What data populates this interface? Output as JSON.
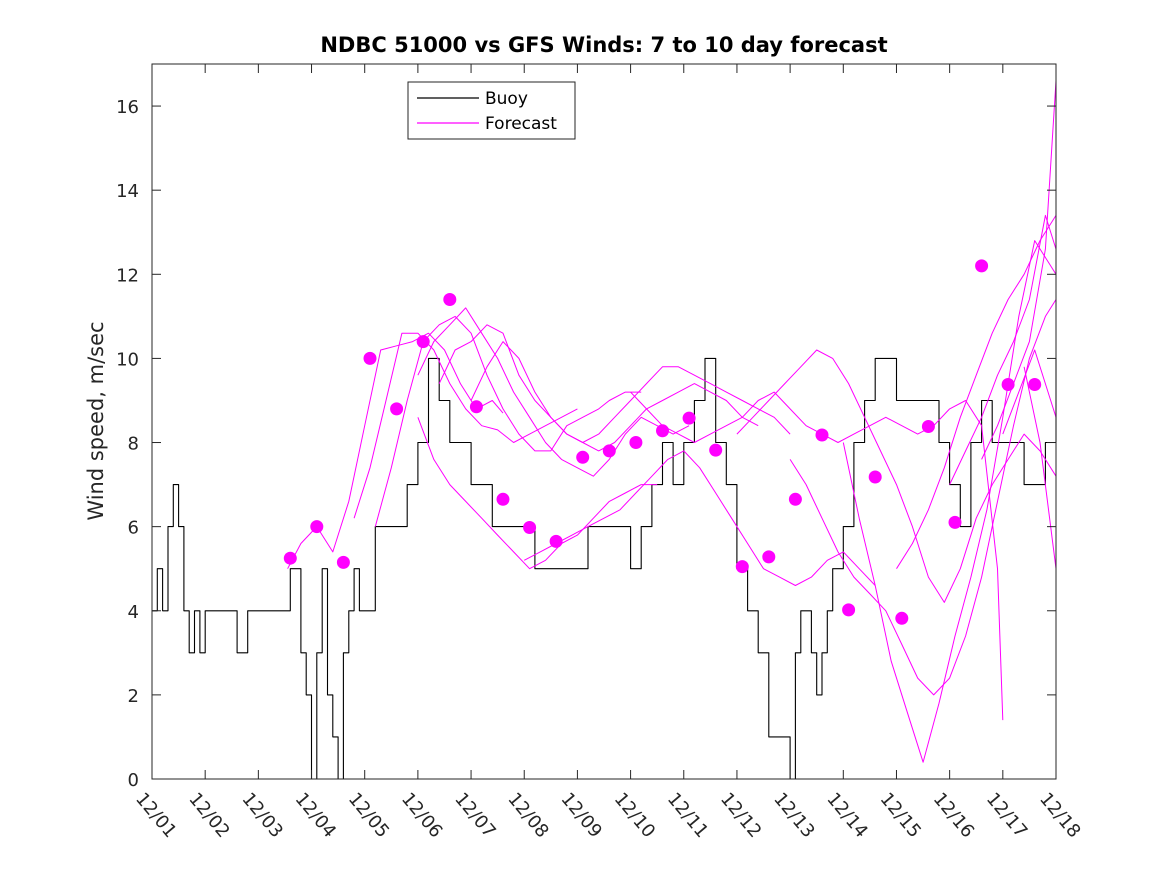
{
  "chart_data": {
    "type": "line",
    "title": "NDBC 51000 vs GFS Winds: 7 to 10 day forecast",
    "xlabel": "",
    "ylabel": "Wind speed, m/sec",
    "xlim": [
      0,
      17
    ],
    "ylim": [
      0,
      17
    ],
    "x_tick_labels": [
      "12/01",
      "12/02",
      "12/03",
      "12/04",
      "12/05",
      "12/06",
      "12/07",
      "12/08",
      "12/09",
      "12/10",
      "12/11",
      "12/12",
      "12/13",
      "12/14",
      "12/15",
      "12/16",
      "12/17",
      "12/18"
    ],
    "y_ticks": [
      0,
      2,
      4,
      6,
      8,
      10,
      12,
      14,
      16
    ],
    "legend": {
      "position": "top-center",
      "entries": [
        "Buoy",
        "Forecast"
      ]
    },
    "colors": {
      "buoy": "#000000",
      "forecast": "#ff00ff",
      "axes": "#262626"
    },
    "series": [
      {
        "name": "Buoy",
        "x": [
          0,
          0.1,
          0.2,
          0.3,
          0.4,
          0.5,
          0.6,
          0.7,
          0.8,
          0.9,
          1.0,
          1.2,
          1.4,
          1.6,
          1.8,
          2.0,
          2.2,
          2.4,
          2.6,
          2.8,
          2.9,
          3.0,
          3.1,
          3.2,
          3.3,
          3.4,
          3.5,
          3.6,
          3.7,
          3.8,
          3.9,
          4.0,
          4.2,
          4.4,
          4.6,
          4.8,
          5.0,
          5.2,
          5.4,
          5.6,
          5.8,
          6.0,
          6.2,
          6.4,
          6.6,
          6.8,
          7.0,
          7.2,
          7.4,
          7.6,
          7.8,
          8.0,
          8.2,
          8.4,
          8.6,
          8.8,
          9.0,
          9.2,
          9.4,
          9.6,
          9.8,
          10.0,
          10.2,
          10.4,
          10.6,
          10.8,
          11.0,
          11.2,
          11.4,
          11.6,
          11.8,
          12.0,
          12.1,
          12.2,
          12.3,
          12.4,
          12.5,
          12.6,
          12.7,
          12.8,
          13.0,
          13.2,
          13.4,
          13.6,
          13.8,
          14.0,
          14.2,
          14.4,
          14.6,
          14.8,
          15.0,
          15.2,
          15.4,
          15.6,
          15.8,
          16.0,
          16.2,
          16.4,
          16.6,
          16.8,
          17.0
        ],
        "y": [
          4,
          5,
          4,
          6,
          7,
          6,
          4,
          3,
          4,
          3,
          4,
          4,
          4,
          3,
          4,
          4,
          4,
          4,
          5,
          3,
          2,
          0,
          3,
          5,
          2,
          1,
          0,
          3,
          4,
          5,
          4,
          4,
          6,
          6,
          6,
          7,
          8,
          10,
          9,
          8,
          8,
          7,
          7,
          6,
          6,
          6,
          6,
          5,
          5,
          5,
          5,
          5,
          6,
          6,
          6,
          6,
          5,
          6,
          7,
          8,
          7,
          8,
          9,
          10,
          8,
          7,
          5,
          4,
          3,
          1,
          1,
          0,
          3,
          4,
          4,
          3,
          2,
          3,
          4,
          5,
          6,
          8,
          9,
          10,
          10,
          9,
          9,
          9,
          9,
          8,
          7,
          6,
          8,
          9,
          8,
          8,
          8,
          7,
          7,
          8,
          10
        ]
      },
      {
        "name": "Forecast 1",
        "x": [
          2.55,
          2.8,
          3.1,
          3.4,
          3.7,
          4.0,
          4.3,
          4.6,
          4.9,
          5.2,
          5.5,
          5.8,
          6.1,
          6.4,
          6.6
        ],
        "y": [
          5.0,
          5.6,
          6.0,
          5.4,
          6.6,
          8.4,
          10.2,
          10.3,
          10.4,
          10.6,
          10.2,
          9.4,
          8.8,
          9.0,
          8.7
        ]
      },
      {
        "name": "Forecast 2",
        "x": [
          3.8,
          4.1,
          4.4,
          4.7,
          5.0,
          5.3,
          5.6,
          5.9,
          6.2,
          6.5,
          6.8,
          7.1,
          7.4,
          7.7,
          8.0
        ],
        "y": [
          6.2,
          7.4,
          9.0,
          10.6,
          10.6,
          10.2,
          9.4,
          8.8,
          8.4,
          8.3,
          8.0,
          8.2,
          8.4,
          8.6,
          8.8
        ]
      },
      {
        "name": "Forecast 3",
        "x": [
          4.2,
          4.5,
          4.8,
          5.1,
          5.4,
          5.7,
          6.0,
          6.3,
          6.6,
          6.9,
          7.2,
          7.5,
          7.8,
          8.1,
          8.4,
          8.6,
          8.9,
          9.2
        ],
        "y": [
          6.0,
          7.4,
          9.0,
          10.4,
          10.8,
          11.0,
          10.6,
          9.6,
          8.8,
          8.2,
          7.8,
          7.8,
          8.4,
          8.6,
          8.8,
          9.0,
          9.2,
          9.2
        ]
      },
      {
        "name": "Forecast 4",
        "x": [
          5.0,
          5.3,
          5.6,
          5.9,
          6.2,
          6.5,
          6.8,
          7.1,
          7.4,
          7.7,
          8.0,
          8.3,
          8.6,
          8.9,
          9.2,
          9.5,
          9.8,
          10.1
        ],
        "y": [
          9.6,
          10.4,
          10.8,
          11.2,
          10.6,
          10.0,
          9.2,
          8.6,
          8.0,
          7.6,
          7.4,
          7.2,
          7.6,
          8.2,
          8.6,
          8.4,
          8.2,
          8.4
        ]
      },
      {
        "name": "Forecast 5",
        "x": [
          5.4,
          5.7,
          6.0,
          6.3,
          6.6,
          6.9,
          7.2,
          7.5,
          7.8,
          8.1,
          8.4,
          8.7,
          9.0,
          9.3,
          9.6,
          9.9,
          10.2,
          10.5,
          10.8,
          11.1,
          11.4
        ],
        "y": [
          9.4,
          10.2,
          10.4,
          10.8,
          10.6,
          9.6,
          9.0,
          8.6,
          8.2,
          8.0,
          7.8,
          8.0,
          8.4,
          8.8,
          9.0,
          9.2,
          9.4,
          9.2,
          9.0,
          8.6,
          8.4
        ]
      },
      {
        "name": "Forecast 6",
        "x": [
          6.0,
          6.3,
          6.6,
          6.9,
          7.2,
          7.5,
          7.8,
          8.1,
          8.4,
          8.7,
          9.0,
          9.3,
          9.6,
          9.9,
          10.2,
          10.5,
          10.8,
          11.1,
          11.4,
          11.7,
          12.0
        ],
        "y": [
          9.0,
          9.8,
          10.4,
          10.0,
          9.2,
          8.6,
          8.2,
          8.0,
          8.2,
          8.6,
          9.0,
          9.4,
          9.8,
          9.8,
          9.6,
          9.4,
          9.2,
          9.0,
          8.8,
          8.6,
          8.2
        ]
      },
      {
        "name": "Forecast 7",
        "x": [
          5.0,
          5.3,
          5.6,
          5.9,
          6.2,
          6.5,
          6.8,
          7.1,
          7.4,
          7.7,
          8.0,
          8.3,
          8.6,
          8.9,
          9.2,
          9.5
        ],
        "y": [
          8.6,
          7.6,
          7.0,
          6.6,
          6.2,
          5.8,
          5.4,
          5.0,
          5.2,
          5.6,
          5.8,
          6.2,
          6.6,
          6.8,
          7.0,
          7.0
        ]
      },
      {
        "name": "Forecast 8",
        "x": [
          7.0,
          7.3,
          7.6,
          7.9,
          8.2,
          8.5,
          8.8,
          9.1,
          9.4,
          9.7,
          10.0,
          10.3,
          10.6,
          10.9,
          11.2,
          11.5,
          11.8,
          12.1,
          12.4,
          12.7,
          13.0,
          13.3,
          13.6
        ],
        "y": [
          5.2,
          5.4,
          5.6,
          5.8,
          6.0,
          6.2,
          6.4,
          6.8,
          7.2,
          7.6,
          7.8,
          7.4,
          6.8,
          6.2,
          5.6,
          5.0,
          4.8,
          4.6,
          4.8,
          5.2,
          5.4,
          5.0,
          4.6
        ]
      },
      {
        "name": "Forecast 9",
        "x": [
          9.0,
          9.3,
          9.6,
          9.9,
          10.2,
          10.5,
          10.8,
          11.1,
          11.4,
          11.7,
          12.0,
          12.3,
          12.6,
          12.9,
          13.2,
          13.5,
          13.8,
          14.1,
          14.4,
          14.7,
          15.0,
          15.3,
          15.6,
          15.9,
          16.0
        ],
        "y": [
          9.2,
          8.8,
          8.4,
          8.2,
          8.0,
          8.2,
          8.4,
          8.6,
          9.0,
          9.2,
          8.8,
          8.4,
          8.2,
          8.0,
          8.2,
          8.4,
          8.6,
          8.4,
          8.2,
          8.4,
          8.8,
          9.0,
          8.4,
          5.0,
          1.4
        ]
      },
      {
        "name": "Forecast 10",
        "x": [
          11.0,
          11.3,
          11.6,
          11.9,
          12.2,
          12.5,
          12.8,
          13.1,
          13.4,
          13.7,
          14.0,
          14.3,
          14.6,
          14.9,
          15.2,
          15.5,
          15.8,
          16.1,
          16.4,
          16.7,
          17.0
        ],
        "y": [
          8.2,
          8.6,
          9.0,
          9.4,
          9.8,
          10.2,
          10.0,
          9.4,
          8.6,
          7.8,
          7.0,
          6.0,
          4.8,
          4.2,
          5.0,
          6.2,
          7.0,
          7.6,
          8.2,
          7.8,
          7.2
        ]
      },
      {
        "name": "Forecast 11",
        "x": [
          12.0,
          12.3,
          12.6,
          12.9,
          13.2,
          13.5,
          13.8,
          14.1,
          14.4,
          14.7,
          15.0,
          15.3,
          15.6,
          15.9,
          16.2,
          16.5,
          16.8,
          17.0
        ],
        "y": [
          7.6,
          7.0,
          6.2,
          5.4,
          4.8,
          4.4,
          4.0,
          3.2,
          2.4,
          2.0,
          2.4,
          3.4,
          4.8,
          6.6,
          8.4,
          10.0,
          11.0,
          11.4
        ]
      },
      {
        "name": "Forecast 12",
        "x": [
          13.0,
          13.3,
          13.6,
          13.9,
          14.2,
          14.5,
          14.8,
          15.1,
          15.4,
          15.7,
          16.0,
          16.3,
          16.6,
          16.9,
          17.0
        ],
        "y": [
          8.0,
          6.2,
          4.6,
          2.8,
          1.6,
          0.4,
          1.8,
          3.4,
          4.8,
          6.4,
          8.6,
          11.0,
          12.8,
          12.2,
          12.0
        ]
      },
      {
        "name": "Forecast 13",
        "x": [
          14.0,
          14.3,
          14.6,
          14.9,
          15.2,
          15.5,
          15.8,
          16.1,
          16.4,
          16.7,
          17.0
        ],
        "y": [
          5.0,
          5.6,
          6.4,
          7.4,
          8.6,
          9.6,
          10.6,
          11.4,
          12.0,
          12.8,
          13.4
        ]
      },
      {
        "name": "Forecast 14",
        "x": [
          15.0,
          15.3,
          15.6,
          15.9,
          16.2,
          16.5,
          16.8,
          17.0
        ],
        "y": [
          7.0,
          7.8,
          8.6,
          9.6,
          10.4,
          11.4,
          13.4,
          12.6
        ]
      },
      {
        "name": "Forecast 15",
        "x": [
          15.6,
          15.9,
          16.2,
          16.5,
          16.8,
          17.0
        ],
        "y": [
          7.6,
          8.4,
          9.4,
          10.4,
          12.6,
          16.6
        ]
      },
      {
        "name": "Forecast 16",
        "x": [
          16.0,
          16.3,
          16.6,
          16.9,
          17.0
        ],
        "y": [
          8.2,
          9.2,
          10.2,
          9.0,
          8.6
        ]
      },
      {
        "name": "Forecast 17",
        "x": [
          16.4,
          16.7,
          17.0
        ],
        "y": [
          9.8,
          8.0,
          5.0
        ]
      },
      {
        "name": "Forecast points",
        "x": [
          2.6,
          3.1,
          3.6,
          4.1,
          4.6,
          5.1,
          5.6,
          6.1,
          6.6,
          7.1,
          7.6,
          8.1,
          8.6,
          9.1,
          9.6,
          10.1,
          10.6,
          11.1,
          11.6,
          12.1,
          12.6,
          13.1,
          13.6,
          14.1,
          14.6,
          15.1,
          15.6,
          16.1,
          16.6
        ],
        "y": [
          5.25,
          6.0,
          5.15,
          10.0,
          8.8,
          10.4,
          11.4,
          8.85,
          6.65,
          5.98,
          5.65,
          7.65,
          7.8,
          8.0,
          8.28,
          8.58,
          7.82,
          5.05,
          5.28,
          6.65,
          8.18,
          4.02,
          7.18,
          3.82,
          8.38,
          6.1,
          12.2,
          9.38,
          9.38
        ]
      }
    ]
  }
}
